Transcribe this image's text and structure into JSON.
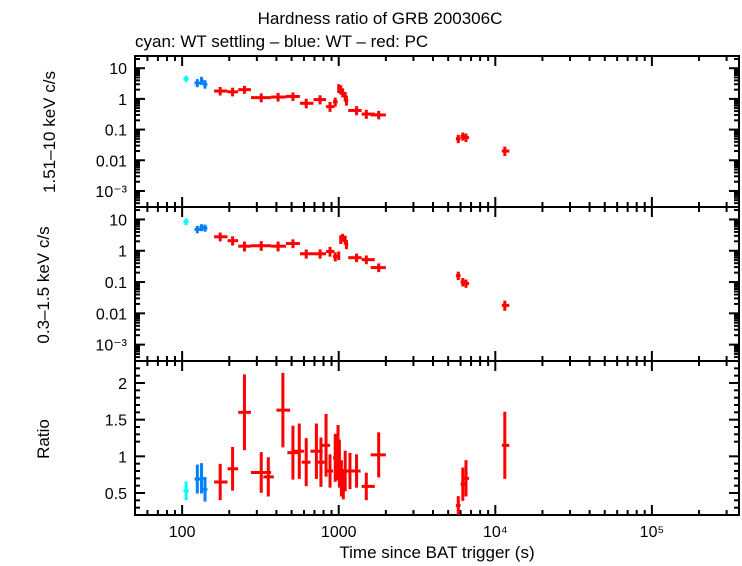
{
  "chart_data": [
    {
      "type": "scatter",
      "panel": "top",
      "title": "Hardness ratio of GRB 200306C",
      "subtitle": "cyan: WT settling – blue: WT – red: PC",
      "ylabel": "1.51–10 keV c/s",
      "yscale": "log",
      "ylim": [
        0.0003,
        25
      ],
      "yticks": [
        {
          "v": 10,
          "label": "10"
        },
        {
          "v": 1,
          "label": "1"
        },
        {
          "v": 0.1,
          "label": "0.1"
        },
        {
          "v": 0.01,
          "label": "0.01"
        },
        {
          "v": 0.001,
          "label": "10⁻³"
        }
      ],
      "series": [
        {
          "name": "WT settling",
          "color": "#00ffff",
          "points": [
            [
              106,
              4.5,
              102,
              110,
              0.4
            ]
          ]
        },
        {
          "name": "WT",
          "color": "#0080ff",
          "points": [
            [
              125,
              3.3,
              120,
              131,
              0.5
            ],
            [
              133,
              3.9,
              130,
              137,
              0.6
            ],
            [
              140,
              3.0,
              136,
              145,
              0.5
            ]
          ]
        },
        {
          "name": "PC",
          "color": "#ff0000",
          "points": [
            [
              175,
              1.8,
              160,
              195,
              0.3
            ],
            [
              210,
              1.7,
              195,
              228,
              0.3
            ],
            [
              250,
              2.0,
              228,
              275,
              0.3
            ],
            [
              320,
              1.1,
              275,
              370,
              0.2
            ],
            [
              410,
              1.15,
              370,
              460,
              0.2
            ],
            [
              510,
              1.2,
              460,
              565,
              0.2
            ],
            [
              620,
              0.72,
              565,
              690,
              0.15
            ],
            [
              760,
              0.95,
              690,
              830,
              0.18
            ],
            [
              880,
              0.56,
              830,
              940,
              0.12
            ],
            [
              950,
              0.8,
              920,
              985,
              0.15
            ],
            [
              1000,
              2.2,
              990,
              1010,
              0.4
            ],
            [
              1030,
              2.0,
              1015,
              1045,
              0.4
            ],
            [
              1060,
              1.6,
              1045,
              1080,
              0.3
            ],
            [
              1100,
              1.2,
              1085,
              1120,
              0.25
            ],
            [
              1120,
              0.9,
              1100,
              1150,
              0.2
            ],
            [
              1300,
              0.42,
              1150,
              1400,
              0.08
            ],
            [
              1500,
              0.32,
              1400,
              1700,
              0.06
            ],
            [
              1800,
              0.3,
              1600,
              2000,
              0.05
            ],
            [
              5800,
              0.05,
              5600,
              6000,
              0.008
            ],
            [
              6200,
              0.06,
              6000,
              6400,
              0.009
            ],
            [
              6500,
              0.055,
              6300,
              6800,
              0.009
            ],
            [
              11500,
              0.02,
              11000,
              12300,
              0.004
            ]
          ]
        }
      ]
    },
    {
      "type": "scatter",
      "panel": "middle",
      "ylabel": "0.3–1.5 keV c/s",
      "yscale": "log",
      "ylim": [
        0.0003,
        25
      ],
      "yticks": [
        {
          "v": 10,
          "label": "10"
        },
        {
          "v": 1,
          "label": "1"
        },
        {
          "v": 0.1,
          "label": "0.1"
        },
        {
          "v": 0.01,
          "label": "0.01"
        },
        {
          "v": 0.001,
          "label": "10⁻³"
        }
      ],
      "series": [
        {
          "name": "WT settling",
          "color": "#00ffff",
          "points": [
            [
              106,
              8.5,
              102,
              110,
              0.8
            ]
          ]
        },
        {
          "name": "WT",
          "color": "#0080ff",
          "points": [
            [
              125,
              4.8,
              120,
              131,
              0.6
            ],
            [
              133,
              5.5,
              129,
              137,
              0.6
            ],
            [
              140,
              5.3,
              136,
              145,
              0.6
            ]
          ]
        },
        {
          "name": "PC",
          "color": "#ff0000",
          "points": [
            [
              175,
              2.8,
              160,
              195,
              0.5
            ],
            [
              210,
              2.1,
              195,
              228,
              0.4
            ],
            [
              250,
              1.4,
              228,
              275,
              0.3
            ],
            [
              320,
              1.45,
              275,
              370,
              0.3
            ],
            [
              410,
              1.4,
              370,
              460,
              0.3
            ],
            [
              510,
              1.7,
              460,
              565,
              0.3
            ],
            [
              620,
              0.8,
              565,
              690,
              0.15
            ],
            [
              760,
              0.8,
              690,
              830,
              0.15
            ],
            [
              880,
              0.95,
              830,
              940,
              0.2
            ],
            [
              950,
              0.65,
              920,
              985,
              0.12
            ],
            [
              1000,
              0.7,
              990,
              1010,
              0.12
            ],
            [
              1030,
              2.3,
              1010,
              1050,
              0.4
            ],
            [
              1060,
              2.6,
              1045,
              1080,
              0.4
            ],
            [
              1100,
              2.2,
              1085,
              1120,
              0.4
            ],
            [
              1120,
              1.6,
              1100,
              1150,
              0.3
            ],
            [
              1300,
              0.6,
              1150,
              1400,
              0.1
            ],
            [
              1500,
              0.52,
              1400,
              1700,
              0.09
            ],
            [
              1800,
              0.29,
              1600,
              2000,
              0.05
            ],
            [
              5800,
              0.16,
              5600,
              6000,
              0.025
            ],
            [
              6200,
              0.1,
              6000,
              6400,
              0.016
            ],
            [
              6500,
              0.09,
              6300,
              6800,
              0.014
            ],
            [
              11500,
              0.018,
              11000,
              12300,
              0.004
            ]
          ]
        }
      ]
    },
    {
      "type": "scatter",
      "panel": "bottom",
      "ylabel": "Ratio",
      "xlabel": "Time since BAT trigger (s)",
      "xscale": "log",
      "xlim": [
        50,
        360000
      ],
      "xticks": [
        {
          "v": 100,
          "label": "100"
        },
        {
          "v": 1000,
          "label": "1000"
        },
        {
          "v": 10000,
          "label": "10⁴"
        },
        {
          "v": 100000,
          "label": "10⁵"
        }
      ],
      "yscale": "linear",
      "ylim": [
        0.2,
        2.3
      ],
      "yticks": [
        {
          "v": 2,
          "label": "2"
        },
        {
          "v": 1.5,
          "label": "1.5"
        },
        {
          "v": 1,
          "label": "1"
        },
        {
          "v": 0.5,
          "label": "0.5"
        }
      ],
      "series": [
        {
          "name": "WT settling",
          "color": "#00ffff",
          "points": [
            [
              106,
              0.53,
              102,
              110,
              0.1
            ]
          ]
        },
        {
          "name": "WT",
          "color": "#0080ff",
          "points": [
            [
              125,
              0.69,
              120,
              131,
              0.17
            ],
            [
              133,
              0.7,
              129,
              137,
              0.18
            ],
            [
              140,
              0.55,
              136,
              145,
              0.14
            ]
          ]
        },
        {
          "name": "PC",
          "color": "#ff0000",
          "points": [
            [
              175,
              0.65,
              160,
              195,
              0.22
            ],
            [
              210,
              0.83,
              195,
              228,
              0.27
            ],
            [
              250,
              1.6,
              228,
              275,
              0.49
            ],
            [
              320,
              0.78,
              275,
              370,
              0.25
            ],
            [
              355,
              0.72,
              330,
              385,
              0.24
            ],
            [
              440,
              1.63,
              400,
              490,
              0.48
            ],
            [
              510,
              1.05,
              470,
              560,
              0.34
            ],
            [
              560,
              1.07,
              520,
              600,
              0.35
            ],
            [
              620,
              0.92,
              580,
              660,
              0.3
            ],
            [
              720,
              1.07,
              660,
              790,
              0.35
            ],
            [
              770,
              0.92,
              720,
              830,
              0.31
            ],
            [
              830,
              1.15,
              780,
              880,
              0.4
            ],
            [
              880,
              0.8,
              830,
              920,
              0.2
            ],
            [
              950,
              0.98,
              920,
              985,
              0.3
            ],
            [
              990,
              1.05,
              975,
              1010,
              0.35
            ],
            [
              1010,
              0.9,
              995,
              1025,
              0.3
            ],
            [
              1040,
              0.7,
              1020,
              1060,
              0.22
            ],
            [
              1070,
              0.62,
              1050,
              1090,
              0.18
            ],
            [
              1100,
              0.8,
              1080,
              1130,
              0.25
            ],
            [
              1180,
              0.8,
              1120,
              1250,
              0.22
            ],
            [
              1300,
              0.8,
              1230,
              1380,
              0.2
            ],
            [
              1500,
              0.59,
              1400,
              1700,
              0.16
            ],
            [
              1800,
              1.02,
              1600,
              2000,
              0.28
            ],
            [
              5800,
              0.33,
              5600,
              6000,
              0.1
            ],
            [
              6200,
              0.62,
              6000,
              6400,
              0.2
            ],
            [
              6500,
              0.7,
              6300,
              6800,
              0.22
            ],
            [
              11500,
              1.15,
              11000,
              12300,
              0.43
            ]
          ]
        }
      ]
    }
  ]
}
